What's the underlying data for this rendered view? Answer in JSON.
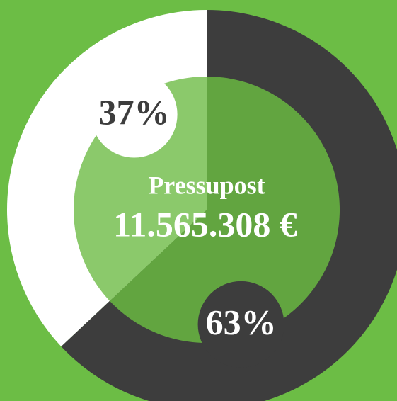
{
  "chart_data": {
    "type": "donut",
    "center_label": "Pressupost",
    "center_value": "11.565.308 €",
    "values": [
      63,
      37
    ],
    "value_labels": [
      "63%",
      "37%"
    ],
    "colors": [
      "#3d3d3d",
      "#ffffff"
    ],
    "inner_colors": [
      "#62a540",
      "#8bc96b"
    ],
    "label_colors": [
      "#ffffff",
      "#3d3d3d"
    ],
    "background": "#6cbd45"
  }
}
